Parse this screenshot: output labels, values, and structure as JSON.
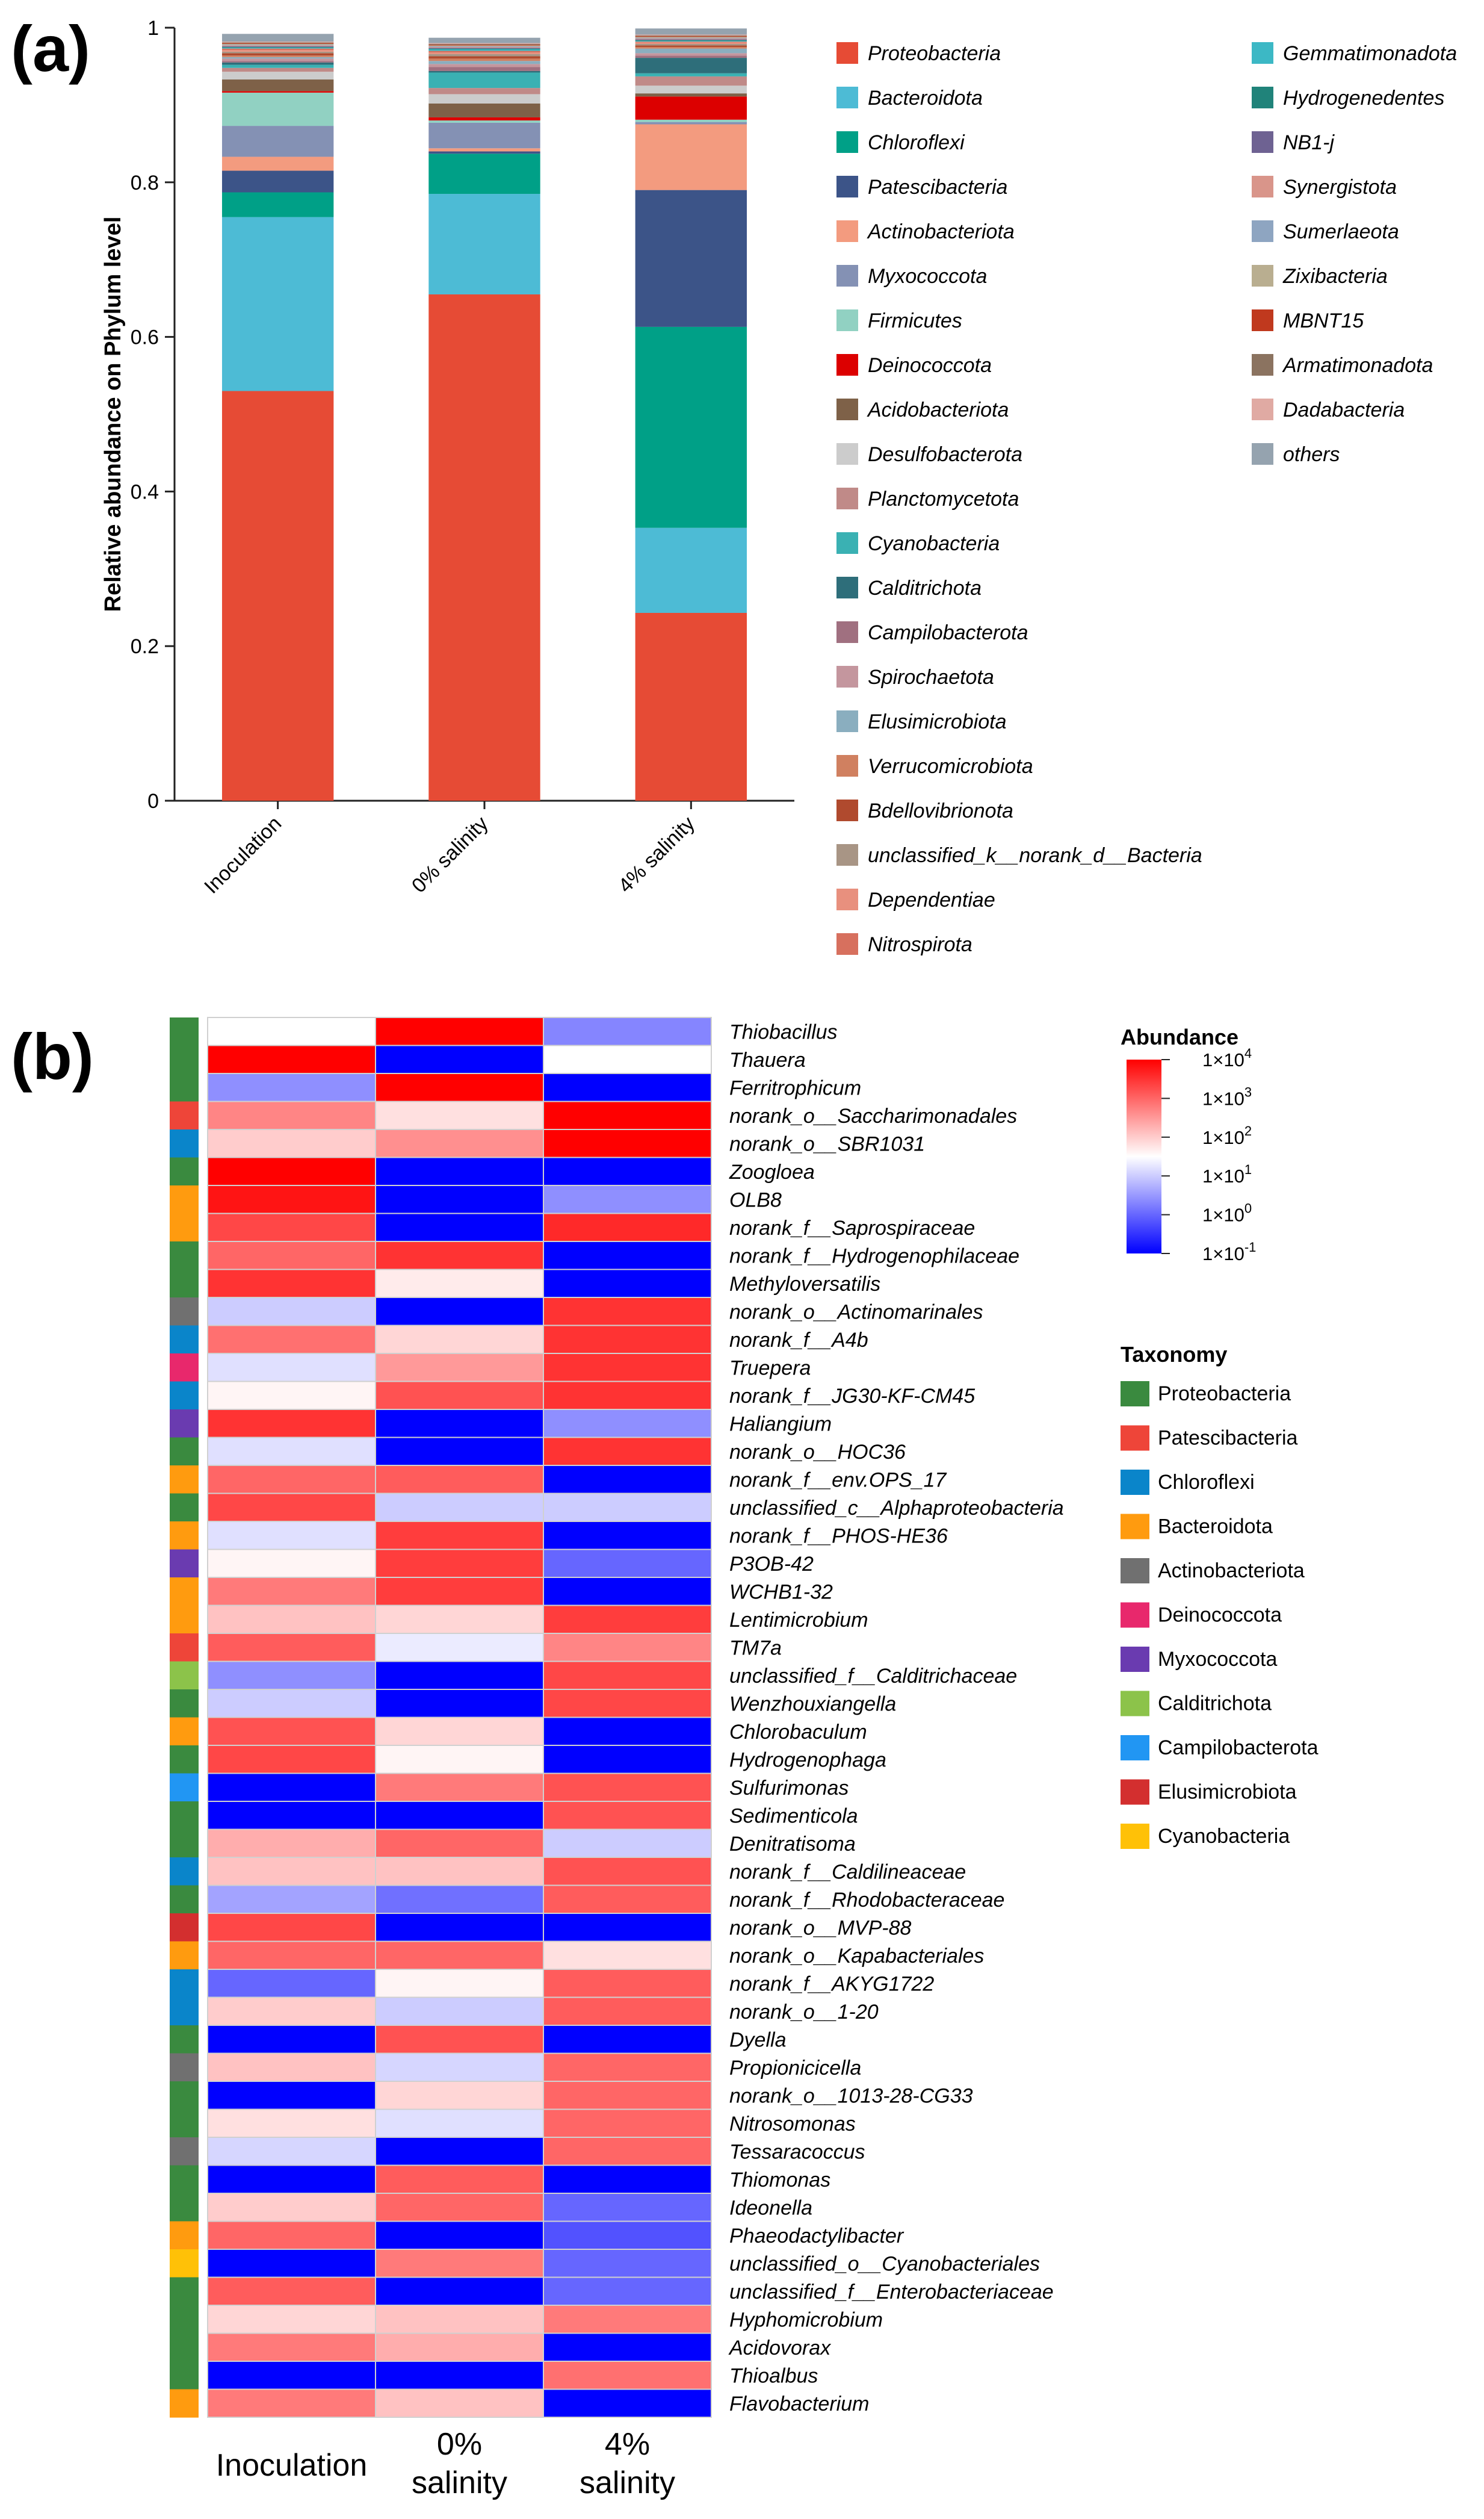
{
  "panel_labels": {
    "a": "(a)",
    "b": "(b)"
  },
  "chart_data": [
    {
      "type": "bar",
      "stacked": true,
      "title": "",
      "xlabel": "",
      "ylabel": "Relative abundance on Phylum level",
      "ylim": [
        0,
        1
      ],
      "yticks": [
        "0",
        "0.2",
        "0.4",
        "0.6",
        "0.8",
        "1"
      ],
      "categories": [
        "Inoculation",
        "0% salinity",
        "4% salinity"
      ],
      "legend_position": "right",
      "series": [
        {
          "name": "Proteobacteria",
          "color": "#E64B35",
          "values": [
            0.53,
            0.655,
            0.243
          ]
        },
        {
          "name": "Bacteroidota",
          "color": "#4DBBD5",
          "values": [
            0.225,
            0.13,
            0.11
          ]
        },
        {
          "name": "Chloroflexi",
          "color": "#00A087",
          "values": [
            0.032,
            0.052,
            0.26
          ]
        },
        {
          "name": "Patescibacteria",
          "color": "#3C5488",
          "values": [
            0.028,
            0.003,
            0.177
          ]
        },
        {
          "name": "Actinobacteriota",
          "color": "#F39B7F",
          "values": [
            0.018,
            0.004,
            0.085
          ]
        },
        {
          "name": "Myxococcota",
          "color": "#8491B4",
          "values": [
            0.04,
            0.033,
            0.003
          ]
        },
        {
          "name": "Firmicutes",
          "color": "#91D1C2",
          "values": [
            0.043,
            0.003,
            0.003
          ]
        },
        {
          "name": "Deinococcota",
          "color": "#DC0000",
          "values": [
            0.002,
            0.004,
            0.03
          ]
        },
        {
          "name": "Acidobacteriota",
          "color": "#7E6148",
          "values": [
            0.015,
            0.018,
            0.004
          ]
        },
        {
          "name": "Desulfobacterota",
          "color": "#CCCCCC",
          "values": [
            0.01,
            0.012,
            0.01
          ]
        },
        {
          "name": "Planctomycetota",
          "color": "#C08A88",
          "values": [
            0.005,
            0.008,
            0.012
          ]
        },
        {
          "name": "Cyanobacteria",
          "color": "#3AB1B3",
          "values": [
            0.004,
            0.02,
            0.004
          ]
        },
        {
          "name": "Calditrichota",
          "color": "#2E6E7A",
          "values": [
            0.003,
            0.002,
            0.02
          ]
        },
        {
          "name": "Campilobacterota",
          "color": "#A07080",
          "values": [
            0.002,
            0.005,
            0.003
          ]
        },
        {
          "name": "Spirochaetota",
          "color": "#C4969E",
          "values": [
            0.003,
            0.004,
            0.003
          ]
        },
        {
          "name": "Elusimicrobiota",
          "color": "#8AAEBF",
          "values": [
            0.002,
            0.004,
            0.006
          ]
        },
        {
          "name": "Verrucomicrobiota",
          "color": "#D08060",
          "values": [
            0.002,
            0.003,
            0.002
          ]
        },
        {
          "name": "Bdellovibrionota",
          "color": "#B04A2E",
          "values": [
            0.003,
            0.003,
            0.002
          ]
        },
        {
          "name": "unclassified_k__norank_d__Bacteria",
          "color": "#A89585",
          "values": [
            0.002,
            0.003,
            0.002
          ]
        },
        {
          "name": "Dependentiae",
          "color": "#E8907E",
          "values": [
            0.002,
            0.002,
            0.002
          ]
        },
        {
          "name": "Nitrospirota",
          "color": "#D7705E",
          "values": [
            0.002,
            0.002,
            0.001
          ]
        },
        {
          "name": "Gemmatimonadota",
          "color": "#3CB8C5",
          "values": [
            0.001,
            0.002,
            0.001
          ]
        },
        {
          "name": "Hydrogenedentes",
          "color": "#20837A",
          "values": [
            0.001,
            0.001,
            0.001
          ]
        },
        {
          "name": "NB1-j",
          "color": "#6E6292",
          "values": [
            0.001,
            0.001,
            0.001
          ]
        },
        {
          "name": "Synergistota",
          "color": "#D9958A",
          "values": [
            0.001,
            0.001,
            0.001
          ]
        },
        {
          "name": "Sumerlaeota",
          "color": "#8EA5C1",
          "values": [
            0.001,
            0.001,
            0.001
          ]
        },
        {
          "name": "Zixibacteria",
          "color": "#B9AE90",
          "values": [
            0.001,
            0.001,
            0.001
          ]
        },
        {
          "name": "MBNT15",
          "color": "#C0391E",
          "values": [
            0.001,
            0.001,
            0.001
          ]
        },
        {
          "name": "Armatimonadota",
          "color": "#8B7360",
          "values": [
            0.001,
            0.001,
            0.001
          ]
        },
        {
          "name": "Dadabacteria",
          "color": "#E0AAA3",
          "values": [
            0.001,
            0.001,
            0.001
          ]
        },
        {
          "name": "others",
          "color": "#95A3AF",
          "values": [
            0.01,
            0.007,
            0.008
          ]
        }
      ]
    },
    {
      "type": "heatmap",
      "columns": [
        "Inoculation",
        "0% salinity",
        "4% salinity"
      ],
      "column_label_lines": [
        [
          "Inoculation"
        ],
        [
          "0%",
          "salinity"
        ],
        [
          "4%",
          "salinity"
        ]
      ],
      "color_legend": {
        "title": "Abundance",
        "scale": "log10",
        "min_log": -1,
        "max_log": 4,
        "colors": [
          "#0000FF",
          "#FFFFFF",
          "#FF0000"
        ],
        "ticks": [
          {
            "log": 4,
            "base": "1×10",
            "exp": "4"
          },
          {
            "log": 3,
            "base": "1×10",
            "exp": "3"
          },
          {
            "log": 2,
            "base": "1×10",
            "exp": "2"
          },
          {
            "log": 1,
            "base": "1×10",
            "exp": "1"
          },
          {
            "log": 0,
            "base": "1×10",
            "exp": "0"
          },
          {
            "log": -1,
            "base": "1×10",
            "exp": "-1"
          }
        ]
      },
      "taxonomy_legend": {
        "title": "Taxonomy",
        "items": [
          {
            "name": "Proteobacteria",
            "color": "#3A8A3F"
          },
          {
            "name": "Patescibacteria",
            "color": "#EE4539"
          },
          {
            "name": "Chloroflexi",
            "color": "#0A85CA"
          },
          {
            "name": "Bacteroidota",
            "color": "#FF9B0F"
          },
          {
            "name": "Actinobacteriota",
            "color": "#707070"
          },
          {
            "name": "Deinococcota",
            "color": "#E8286C"
          },
          {
            "name": "Myxococcota",
            "color": "#6A3BB0"
          },
          {
            "name": "Calditrichota",
            "color": "#8CC34A"
          },
          {
            "name": "Campilobacterota",
            "color": "#2196F3"
          },
          {
            "name": "Elusimicrobiota",
            "color": "#D32F2F"
          },
          {
            "name": "Cyanobacteria",
            "color": "#FFC107"
          }
        ]
      },
      "rows": [
        {
          "name": "Thiobacillus",
          "phylum": "Proteobacteria",
          "values": [
            1.5,
            4.0,
            0.3
          ]
        },
        {
          "name": "Thauera",
          "phylum": "Proteobacteria",
          "values": [
            4.0,
            -1.0,
            1.5
          ]
        },
        {
          "name": "Ferritrophicum",
          "phylum": "Proteobacteria",
          "values": [
            0.4,
            4.0,
            -1.0
          ]
        },
        {
          "name": "norank_o__Saccharimonadales",
          "phylum": "Patescibacteria",
          "values": [
            2.7,
            1.8,
            4.0
          ]
        },
        {
          "name": "norank_o__SBR1031",
          "phylum": "Chloroflexi",
          "values": [
            2.0,
            2.6,
            4.0
          ]
        },
        {
          "name": "Zoogloea",
          "phylum": "Proteobacteria",
          "values": [
            4.0,
            -1.0,
            -1.0
          ]
        },
        {
          "name": "OLB8",
          "phylum": "Bacteroidota",
          "values": [
            3.8,
            -1.0,
            0.4
          ]
        },
        {
          "name": "norank_f__Saprospiraceae",
          "phylum": "Bacteroidota",
          "values": [
            3.3,
            -1.0,
            3.6
          ]
        },
        {
          "name": "norank_f__Hydrogenophilaceae",
          "phylum": "Proteobacteria",
          "values": [
            3.0,
            3.5,
            -1.0
          ]
        },
        {
          "name": "Methyloversatilis",
          "phylum": "Proteobacteria",
          "values": [
            3.5,
            1.7,
            -1.0
          ]
        },
        {
          "name": "norank_o__Actinomarinales",
          "phylum": "Actinobacteriota",
          "values": [
            1.0,
            -1.0,
            3.5
          ]
        },
        {
          "name": "norank_f__A4b",
          "phylum": "Chloroflexi",
          "values": [
            2.9,
            1.9,
            3.5
          ]
        },
        {
          "name": "Truepera",
          "phylum": "Deinococcota",
          "values": [
            1.2,
            2.5,
            3.5
          ]
        },
        {
          "name": "norank_f__JG30-KF-CM45",
          "phylum": "Chloroflexi",
          "values": [
            1.6,
            3.2,
            3.5
          ]
        },
        {
          "name": "Haliangium",
          "phylum": "Myxococcota",
          "values": [
            3.5,
            -1.0,
            0.4
          ]
        },
        {
          "name": "norank_o__HOC36",
          "phylum": "Proteobacteria",
          "values": [
            1.2,
            -1.0,
            3.5
          ]
        },
        {
          "name": "norank_f__env.OPS_17",
          "phylum": "Bacteroidota",
          "values": [
            3.0,
            3.1,
            -1.0
          ]
        },
        {
          "name": "unclassified_c__Alphaproteobacteria",
          "phylum": "Proteobacteria",
          "values": [
            3.3,
            1.0,
            1.0
          ]
        },
        {
          "name": "norank_f__PHOS-HE36",
          "phylum": "Bacteroidota",
          "values": [
            1.2,
            3.4,
            -1.0
          ]
        },
        {
          "name": "P3OB-42",
          "phylum": "Myxococcota",
          "values": [
            1.6,
            3.4,
            0.0
          ]
        },
        {
          "name": "WCHB1-32",
          "phylum": "Bacteroidota",
          "values": [
            2.8,
            3.4,
            -1.0
          ]
        },
        {
          "name": "Lentimicrobium",
          "phylum": "Bacteroidota",
          "values": [
            2.1,
            1.9,
            3.4
          ]
        },
        {
          "name": "TM7a",
          "phylum": "Patescibacteria",
          "values": [
            3.1,
            1.3,
            2.7
          ]
        },
        {
          "name": "unclassified_f__Calditrichaceae",
          "phylum": "Calditrichota",
          "values": [
            0.4,
            -1.0,
            3.3
          ]
        },
        {
          "name": "Wenzhouxiangella",
          "phylum": "Proteobacteria",
          "values": [
            1.0,
            -1.0,
            3.3
          ]
        },
        {
          "name": "Chlorobaculum",
          "phylum": "Bacteroidota",
          "values": [
            3.2,
            1.9,
            -1.0
          ]
        },
        {
          "name": "Hydrogenophaga",
          "phylum": "Proteobacteria",
          "values": [
            3.3,
            1.6,
            -1.0
          ]
        },
        {
          "name": "Sulfurimonas",
          "phylum": "Campilobacterota",
          "values": [
            -1.0,
            2.8,
            3.2
          ]
        },
        {
          "name": "Sedimenticola",
          "phylum": "Proteobacteria",
          "values": [
            -1.0,
            -1.0,
            3.2
          ]
        },
        {
          "name": "Denitratisoma",
          "phylum": "Proteobacteria",
          "values": [
            2.3,
            3.0,
            1.0
          ]
        },
        {
          "name": "norank_f__Caldilineaceae",
          "phylum": "Chloroflexi",
          "values": [
            2.1,
            2.1,
            3.2
          ]
        },
        {
          "name": "norank_f__Rhodobacteraceae",
          "phylum": "Proteobacteria",
          "values": [
            0.6,
            0.1,
            3.1
          ]
        },
        {
          "name": "norank_o__MVP-88",
          "phylum": "Elusimicrobiota",
          "values": [
            3.3,
            -1.0,
            -1.0
          ]
        },
        {
          "name": "norank_o__Kapabacteriales",
          "phylum": "Bacteroidota",
          "values": [
            3.0,
            3.0,
            1.8
          ]
        },
        {
          "name": "norank_f__AKYG1722",
          "phylum": "Chloroflexi",
          "values": [
            0.0,
            1.6,
            3.1
          ]
        },
        {
          "name": "norank_o__1-20",
          "phylum": "Chloroflexi",
          "values": [
            2.0,
            1.0,
            3.1
          ]
        },
        {
          "name": "Dyella",
          "phylum": "Proteobacteria",
          "values": [
            -1.0,
            3.2,
            -1.0
          ]
        },
        {
          "name": "Propionicicella",
          "phylum": "Actinobacteriota",
          "values": [
            2.1,
            1.1,
            3.0
          ]
        },
        {
          "name": "norank_o__1013-28-CG33",
          "phylum": "Proteobacteria",
          "values": [
            -1.0,
            1.9,
            3.0
          ]
        },
        {
          "name": "Nitrosomonas",
          "phylum": "Proteobacteria",
          "values": [
            1.8,
            1.2,
            3.0
          ]
        },
        {
          "name": "Tessaracoccus",
          "phylum": "Actinobacteriota",
          "values": [
            1.1,
            -1.0,
            3.0
          ]
        },
        {
          "name": "Thiomonas",
          "phylum": "Proteobacteria",
          "values": [
            -1.0,
            3.1,
            -1.0
          ]
        },
        {
          "name": "Ideonella",
          "phylum": "Proteobacteria",
          "values": [
            2.0,
            3.0,
            0.0
          ]
        },
        {
          "name": "Phaeodactylibacter",
          "phylum": "Bacteroidota",
          "values": [
            3.0,
            -1.0,
            -0.2
          ]
        },
        {
          "name": "unclassified_o__Cyanobacteriales",
          "phylum": "Cyanobacteria",
          "values": [
            -1.0,
            2.8,
            0.0
          ]
        },
        {
          "name": "unclassified_f__Enterobacteriaceae",
          "phylum": "Proteobacteria",
          "values": [
            3.1,
            -1.0,
            0.0
          ]
        },
        {
          "name": "Hyphomicrobium",
          "phylum": "Proteobacteria",
          "values": [
            1.9,
            2.1,
            2.8
          ]
        },
        {
          "name": "Acidovorax",
          "phylum": "Proteobacteria",
          "values": [
            2.8,
            2.3,
            -1.0
          ]
        },
        {
          "name": "Thioalbus",
          "phylum": "Proteobacteria",
          "values": [
            -1.0,
            -1.0,
            2.9
          ]
        },
        {
          "name": "Flavobacterium",
          "phylum": "Bacteroidota",
          "values": [
            2.8,
            2.1,
            -1.0
          ]
        }
      ]
    }
  ]
}
